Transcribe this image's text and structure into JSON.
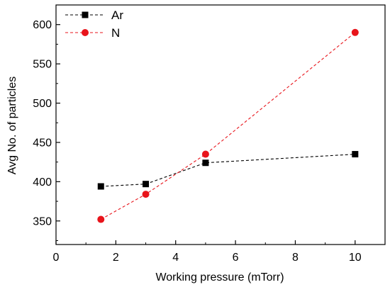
{
  "chart_data": {
    "type": "line",
    "title": "",
    "xlabel": "Working pressure (mTorr)",
    "ylabel": "Avg No. of particles",
    "xlim": [
      0,
      11
    ],
    "ylim": [
      320,
      625
    ],
    "x_ticks": [
      0,
      2,
      4,
      6,
      8,
      10
    ],
    "y_ticks": [
      350,
      400,
      450,
      500,
      550,
      600
    ],
    "grid": false,
    "legend_position": "top-left",
    "series": [
      {
        "name": "Ar",
        "marker": "square",
        "line_style": "dashed",
        "color": "#000000",
        "x": [
          1.5,
          3,
          5,
          10
        ],
        "y": [
          394,
          397,
          424,
          435
        ]
      },
      {
        "name": "N",
        "marker": "circle",
        "line_style": "dashed",
        "color": "#e8141b",
        "x": [
          1.5,
          3,
          5,
          10
        ],
        "y": [
          352,
          384,
          435,
          590
        ]
      }
    ]
  }
}
